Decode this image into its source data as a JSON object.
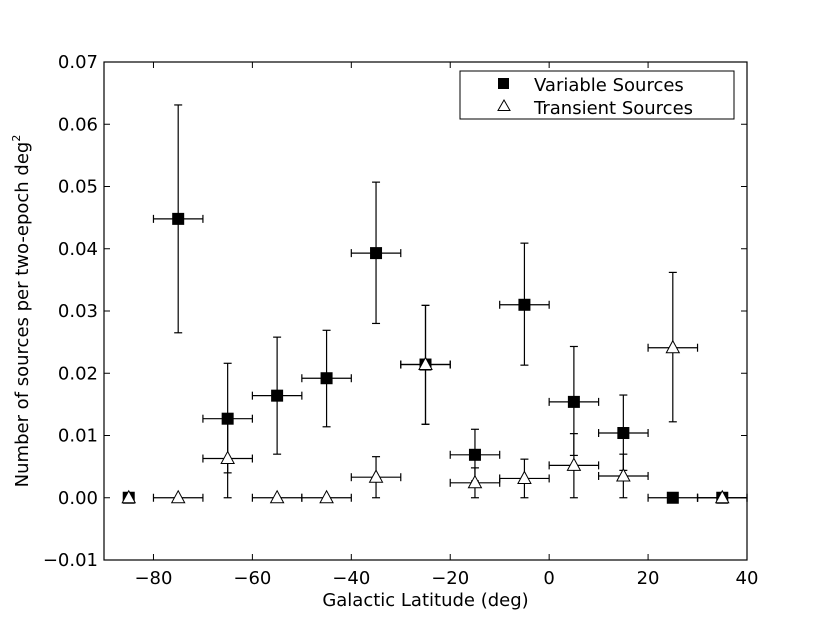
{
  "chart_data": {
    "type": "scatter",
    "title": "",
    "xlabel": "Galactic Latitude (deg)",
    "ylabel": "Number of sources per two-epoch deg",
    "ylabel_superscript": "2",
    "xlim": [
      -90,
      40
    ],
    "ylim": [
      -0.01,
      0.07
    ],
    "xticks": [
      -80,
      -60,
      -40,
      -20,
      0,
      20,
      40
    ],
    "xtick_labels": [
      "−80",
      "−60",
      "−40",
      "−20",
      "0",
      "20",
      "40"
    ],
    "yticks": [
      -0.01,
      0.0,
      0.01,
      0.02,
      0.03,
      0.04,
      0.05,
      0.06,
      0.07
    ],
    "ytick_labels": [
      "−0.01",
      "0.00",
      "0.01",
      "0.02",
      "0.03",
      "0.04",
      "0.05",
      "0.06",
      "0.07"
    ],
    "grid": false,
    "legend_position": "top-right",
    "series": [
      {
        "name": "Variable Sources",
        "marker": "filled-square",
        "color": "#000000",
        "points": [
          {
            "x": -85,
            "y": 0.0,
            "xerr": 0,
            "ylo": 0.0,
            "yhi": 0.0
          },
          {
            "x": -75,
            "y": 0.0448,
            "xerr": 5,
            "ylo": 0.0265,
            "yhi": 0.0631
          },
          {
            "x": -65,
            "y": 0.0127,
            "xerr": 5,
            "ylo": 0.004,
            "yhi": 0.0216
          },
          {
            "x": -55,
            "y": 0.0164,
            "xerr": 5,
            "ylo": 0.007,
            "yhi": 0.0258
          },
          {
            "x": -45,
            "y": 0.0192,
            "xerr": 5,
            "ylo": 0.0114,
            "yhi": 0.0269
          },
          {
            "x": -35,
            "y": 0.0393,
            "xerr": 5,
            "ylo": 0.028,
            "yhi": 0.0507
          },
          {
            "x": -25,
            "y": 0.0214,
            "xerr": 5,
            "ylo": 0.0118,
            "yhi": 0.0309
          },
          {
            "x": -15,
            "y": 0.0069,
            "xerr": 5,
            "ylo": 0.0027,
            "yhi": 0.011
          },
          {
            "x": -5,
            "y": 0.031,
            "xerr": 5,
            "ylo": 0.0213,
            "yhi": 0.0409
          },
          {
            "x": 5,
            "y": 0.0154,
            "xerr": 5,
            "ylo": 0.0068,
            "yhi": 0.0243
          },
          {
            "x": 15,
            "y": 0.0104,
            "xerr": 5,
            "ylo": 0.0044,
            "yhi": 0.0165
          },
          {
            "x": 25,
            "y": 0.0,
            "xerr": 5,
            "ylo": 0.0,
            "yhi": 0.0
          },
          {
            "x": 35,
            "y": 0.0,
            "xerr": 5,
            "ylo": 0.0,
            "yhi": 0.0
          }
        ]
      },
      {
        "name": "Transient Sources",
        "marker": "open-triangle",
        "color": "#000000",
        "points": [
          {
            "x": -85,
            "y": 0.0,
            "xerr": 0,
            "ylo": 0.0,
            "yhi": 0.0
          },
          {
            "x": -75,
            "y": 0.0,
            "xerr": 5,
            "ylo": 0.0,
            "yhi": 0.0
          },
          {
            "x": -65,
            "y": 0.0063,
            "xerr": 5,
            "ylo": 0.0,
            "yhi": 0.0127
          },
          {
            "x": -55,
            "y": 0.0,
            "xerr": 5,
            "ylo": 0.0,
            "yhi": 0.0
          },
          {
            "x": -45,
            "y": 0.0,
            "xerr": 5,
            "ylo": 0.0,
            "yhi": 0.0
          },
          {
            "x": -35,
            "y": 0.0033,
            "xerr": 5,
            "ylo": 0.0,
            "yhi": 0.0066
          },
          {
            "x": -25,
            "y": 0.0214,
            "xerr": 5,
            "ylo": 0.0118,
            "yhi": 0.0309
          },
          {
            "x": -15,
            "y": 0.0024,
            "xerr": 5,
            "ylo": 0.0,
            "yhi": 0.0048
          },
          {
            "x": -5,
            "y": 0.0031,
            "xerr": 5,
            "ylo": 0.0,
            "yhi": 0.0062
          },
          {
            "x": 5,
            "y": 0.0052,
            "xerr": 5,
            "ylo": 0.0,
            "yhi": 0.0103
          },
          {
            "x": 15,
            "y": 0.0035,
            "xerr": 5,
            "ylo": 0.0,
            "yhi": 0.007
          },
          {
            "x": 25,
            "y": 0.0241,
            "xerr": 5,
            "ylo": 0.0122,
            "yhi": 0.0362
          },
          {
            "x": 35,
            "y": 0.0,
            "xerr": 5,
            "ylo": 0.0,
            "yhi": 0.0
          }
        ]
      }
    ]
  }
}
